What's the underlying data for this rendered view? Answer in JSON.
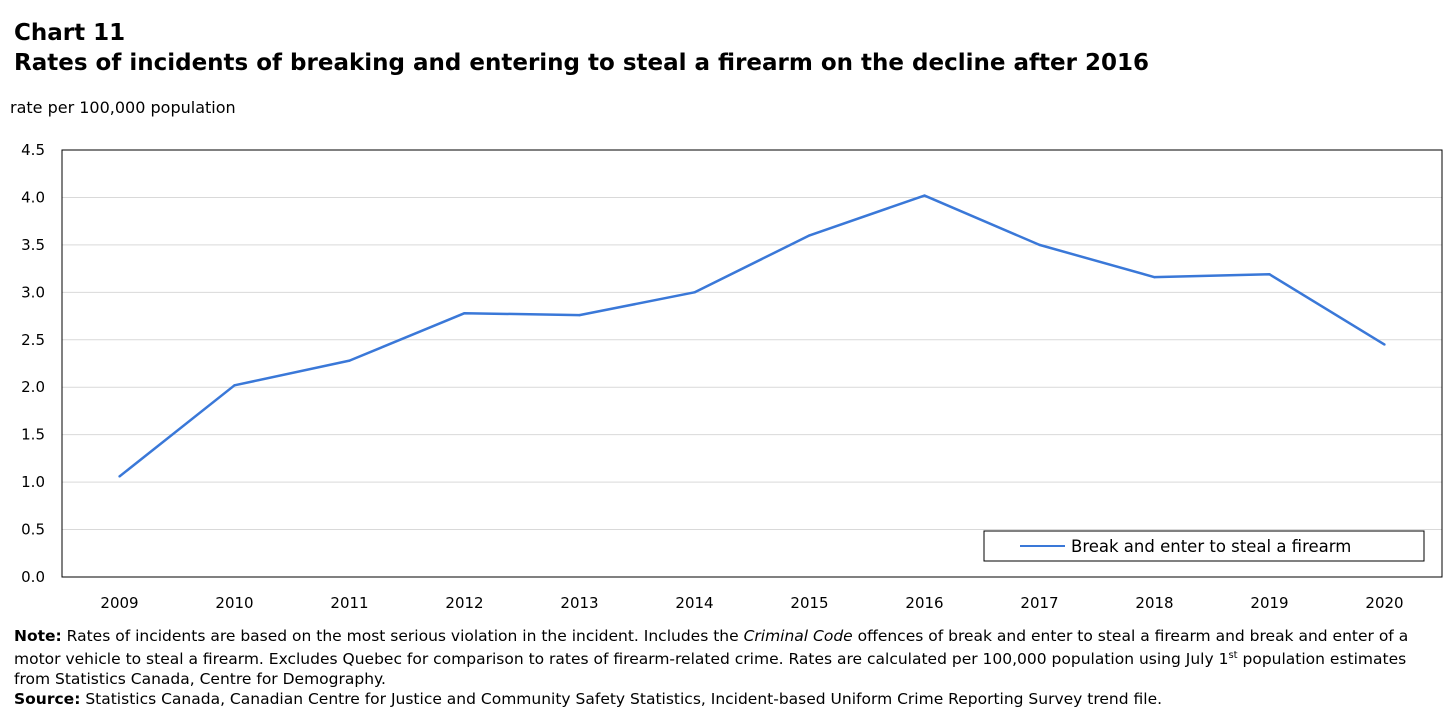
{
  "header": {
    "chart_number": "Chart 11",
    "title": "Rates of incidents of breaking and entering to steal a firearm on the decline after 2016",
    "unit_label": "rate per 100,000 population"
  },
  "chart_data": {
    "type": "line",
    "title": "Rates of incidents of breaking and entering to steal a firearm on the decline after 2016",
    "xlabel": "",
    "ylabel": "rate per 100,000 population",
    "categories": [
      "2009",
      "2010",
      "2011",
      "2012",
      "2013",
      "2014",
      "2015",
      "2016",
      "2017",
      "2018",
      "2019",
      "2020"
    ],
    "series": [
      {
        "name": "Break and enter to steal a firearm",
        "values": [
          1.06,
          2.02,
          2.28,
          2.78,
          2.76,
          3.0,
          3.6,
          4.02,
          3.5,
          3.16,
          3.19,
          2.45
        ]
      }
    ],
    "ylim": [
      0,
      4.5
    ],
    "yticks": [
      "0.0",
      "0.5",
      "1.0",
      "1.5",
      "2.0",
      "2.5",
      "3.0",
      "3.5",
      "4.0",
      "4.5"
    ],
    "grid": true,
    "legend_position": "bottom-right",
    "line_color": "#3a78d8"
  },
  "notes": {
    "note_label": "Note:",
    "note_part1": " Rates of incidents are based on the most serious violation in the incident. Includes the ",
    "note_italic": "Criminal Code",
    "note_part2": " offences of break and enter to steal a firearm and break and enter of a motor vehicle to steal a firearm. Excludes Quebec for comparison to rates of firearm-related crime. Rates are calculated per 100,000 population using July 1",
    "note_superscript": "st",
    "note_part3": " population estimates from Statistics Canada, Centre for Demography.",
    "source_label": "Source:",
    "source_text": " Statistics Canada, Canadian Centre for Justice and Community Safety Statistics, Incident-based Uniform Crime Reporting Survey trend file."
  }
}
